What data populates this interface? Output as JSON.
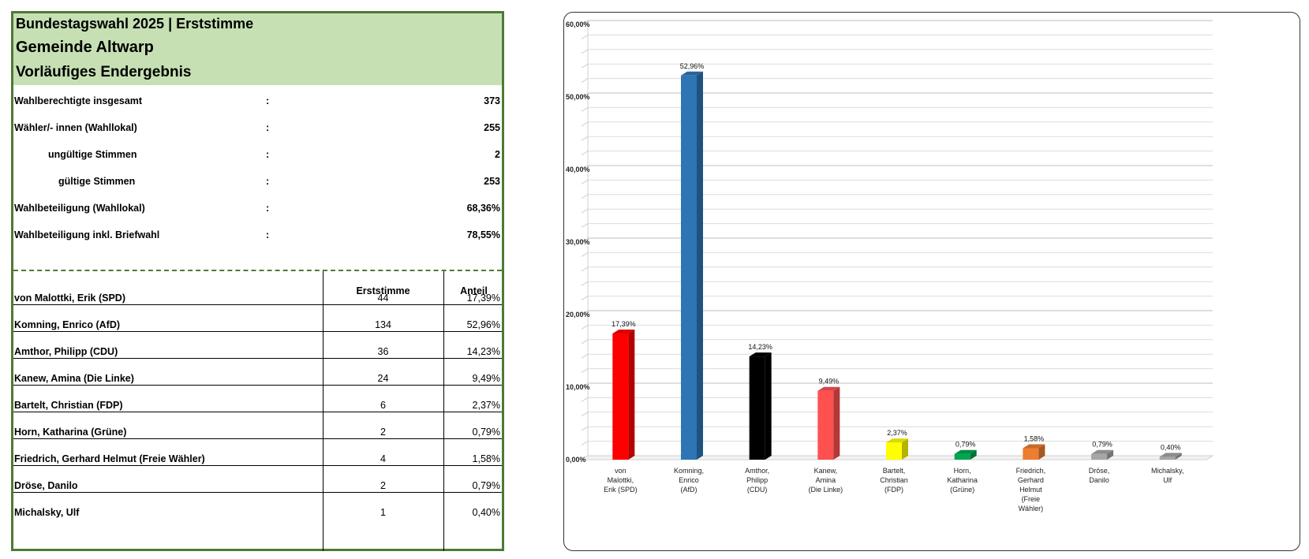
{
  "table": {
    "title_line1": "Bundestagswahl 2025  |  Erststimme",
    "title_line2": "Gemeinde Altwarp",
    "title_line3": "Vorläufiges Endergebnis",
    "colon": ":",
    "summary": [
      {
        "label": "Wahlberechtigte insgesamt",
        "value": "373"
      },
      {
        "label": "Wähler/- innen (Wahllokal)",
        "value": "255"
      },
      {
        "label": "ungültige Stimmen",
        "value": "2"
      },
      {
        "label": "gültige Stimmen",
        "value": "253"
      },
      {
        "label": "Wahlbeteiligung (Wahllokal)",
        "value": "68,36%"
      },
      {
        "label": "Wahlbeteiligung inkl. Briefwahl",
        "value": "78,55%"
      }
    ],
    "col_votes": "Erststimme",
    "col_share": "Anteil",
    "candidates": [
      {
        "name": "von Malottki, Erik (SPD)",
        "votes": "44",
        "share": "17,39%"
      },
      {
        "name": "Komning, Enrico (AfD)",
        "votes": "134",
        "share": "52,96%"
      },
      {
        "name": "Amthor, Philipp (CDU)",
        "votes": "36",
        "share": "14,23%"
      },
      {
        "name": "Kanew, Amina (Die Linke)",
        "votes": "24",
        "share": "9,49%"
      },
      {
        "name": "Bartelt, Christian (FDP)",
        "votes": "6",
        "share": "2,37%"
      },
      {
        "name": "Horn, Katharina (Grüne)",
        "votes": "2",
        "share": "0,79%"
      },
      {
        "name": "Friedrich, Gerhard Helmut (Freie Wähler)",
        "votes": "4",
        "share": "1,58%"
      },
      {
        "name": "Dröse, Danilo",
        "votes": "2",
        "share": "0,79%"
      },
      {
        "name": "Michalsky, Ulf",
        "votes": "1",
        "share": "0,40%"
      }
    ]
  },
  "chart_data": {
    "type": "bar",
    "title": "",
    "xlabel": "",
    "ylabel": "",
    "ylim": [
      0,
      60
    ],
    "y_ticks": [
      "0,00%",
      "10,00%",
      "20,00%",
      "30,00%",
      "40,00%",
      "50,00%",
      "60,00%"
    ],
    "grid": true,
    "legend": "none",
    "categories": [
      [
        "von",
        "Malottki,",
        "Erik (SPD)"
      ],
      [
        "Komning,",
        "Enrico",
        "(AfD)"
      ],
      [
        "Amthor,",
        "Philipp",
        "(CDU)"
      ],
      [
        "Kanew,",
        "Amina",
        "(Die Linke)"
      ],
      [
        "Bartelt,",
        "Christian",
        "(FDP)"
      ],
      [
        "Horn,",
        "Katharina",
        "(Grüne)"
      ],
      [
        "Friedrich,",
        "Gerhard",
        "Helmut",
        "(Freie",
        "Wähler)"
      ],
      [
        "Dröse,",
        "Danilo"
      ],
      [
        "Michalsky,",
        "Ulf"
      ]
    ],
    "values": [
      17.39,
      52.96,
      14.23,
      9.49,
      2.37,
      0.79,
      1.58,
      0.79,
      0.4
    ],
    "data_labels": [
      "17,39%",
      "52,96%",
      "14,23%",
      "9,49%",
      "2,37%",
      "0,79%",
      "1,58%",
      "0,79%",
      "0,40%"
    ],
    "colors": [
      "#ff0000",
      "#2e75b6",
      "#000000",
      "#ff5050",
      "#ffff00",
      "#00a550",
      "#ed7d31",
      "#a6a6a6",
      "#a6a6a6"
    ]
  }
}
